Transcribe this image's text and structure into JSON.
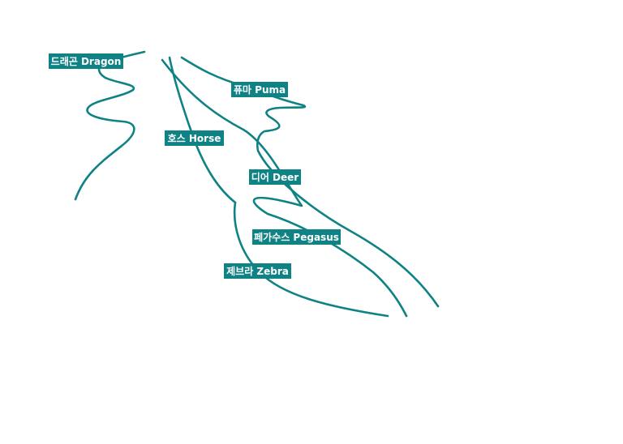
{
  "map": {
    "line_color": "#0f8285",
    "label_background": "#0f8285",
    "label_text_color": "#ffffff",
    "routes": [
      {
        "id": "dragon",
        "label": "드래곤 Dragon"
      },
      {
        "id": "puma",
        "label": "퓨마 Puma"
      },
      {
        "id": "horse",
        "label": "호스 Horse"
      },
      {
        "id": "deer",
        "label": "디어 Deer"
      },
      {
        "id": "pegasus",
        "label": "페가수스 Pegasus"
      },
      {
        "id": "zebra",
        "label": "제브라 Zebra"
      }
    ]
  }
}
